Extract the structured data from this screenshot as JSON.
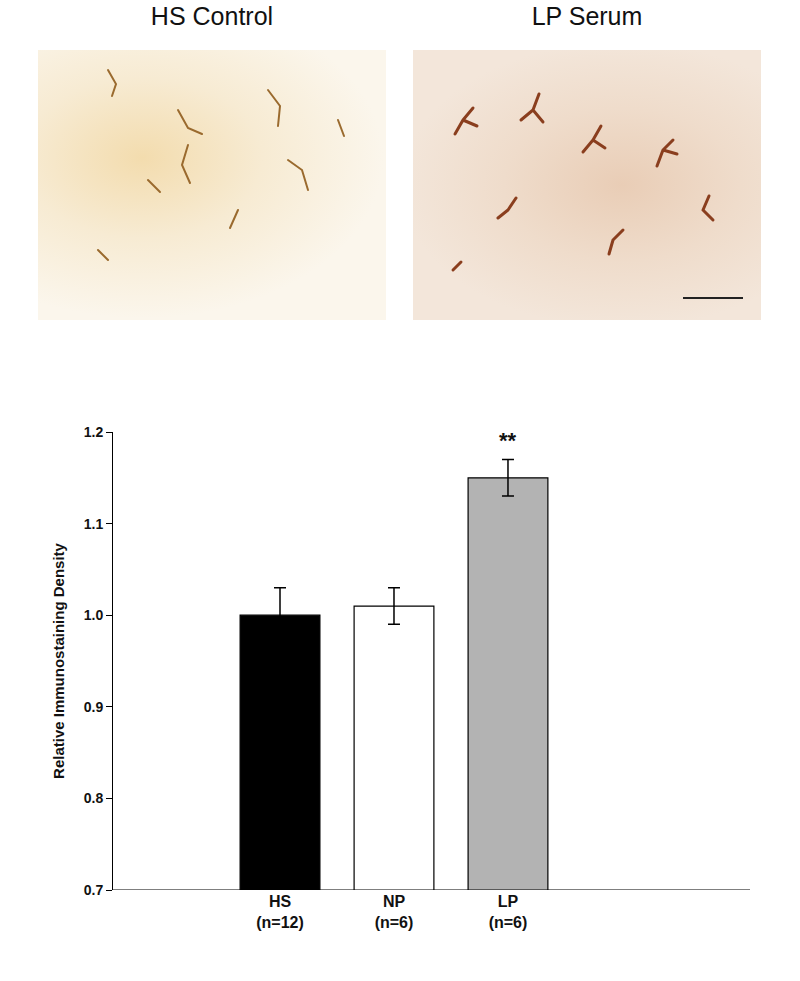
{
  "images": [
    {
      "title": "HS Control"
    },
    {
      "title": "LP Serum"
    }
  ],
  "chart_data": {
    "type": "bar",
    "categories": [
      "HS\n(n=12)",
      "NP\n(n=6)",
      "LP\n(n=6)"
    ],
    "values": [
      1.0,
      1.01,
      1.15
    ],
    "errors": [
      0.03,
      0.02,
      0.02
    ],
    "colors": [
      "#000000",
      "#ffffff",
      "#b3b3b3"
    ],
    "y_label": "Relative Immunostaining Density",
    "ylim": [
      0.7,
      1.2
    ],
    "yticks": [
      0.7,
      0.8,
      0.9,
      {
        "value": 1.0,
        "label": "1.0"
      },
      1.1,
      1.2
    ],
    "grid": false,
    "annotations": [
      {
        "text": "**",
        "category": "LP\n(n=6)"
      }
    ]
  }
}
